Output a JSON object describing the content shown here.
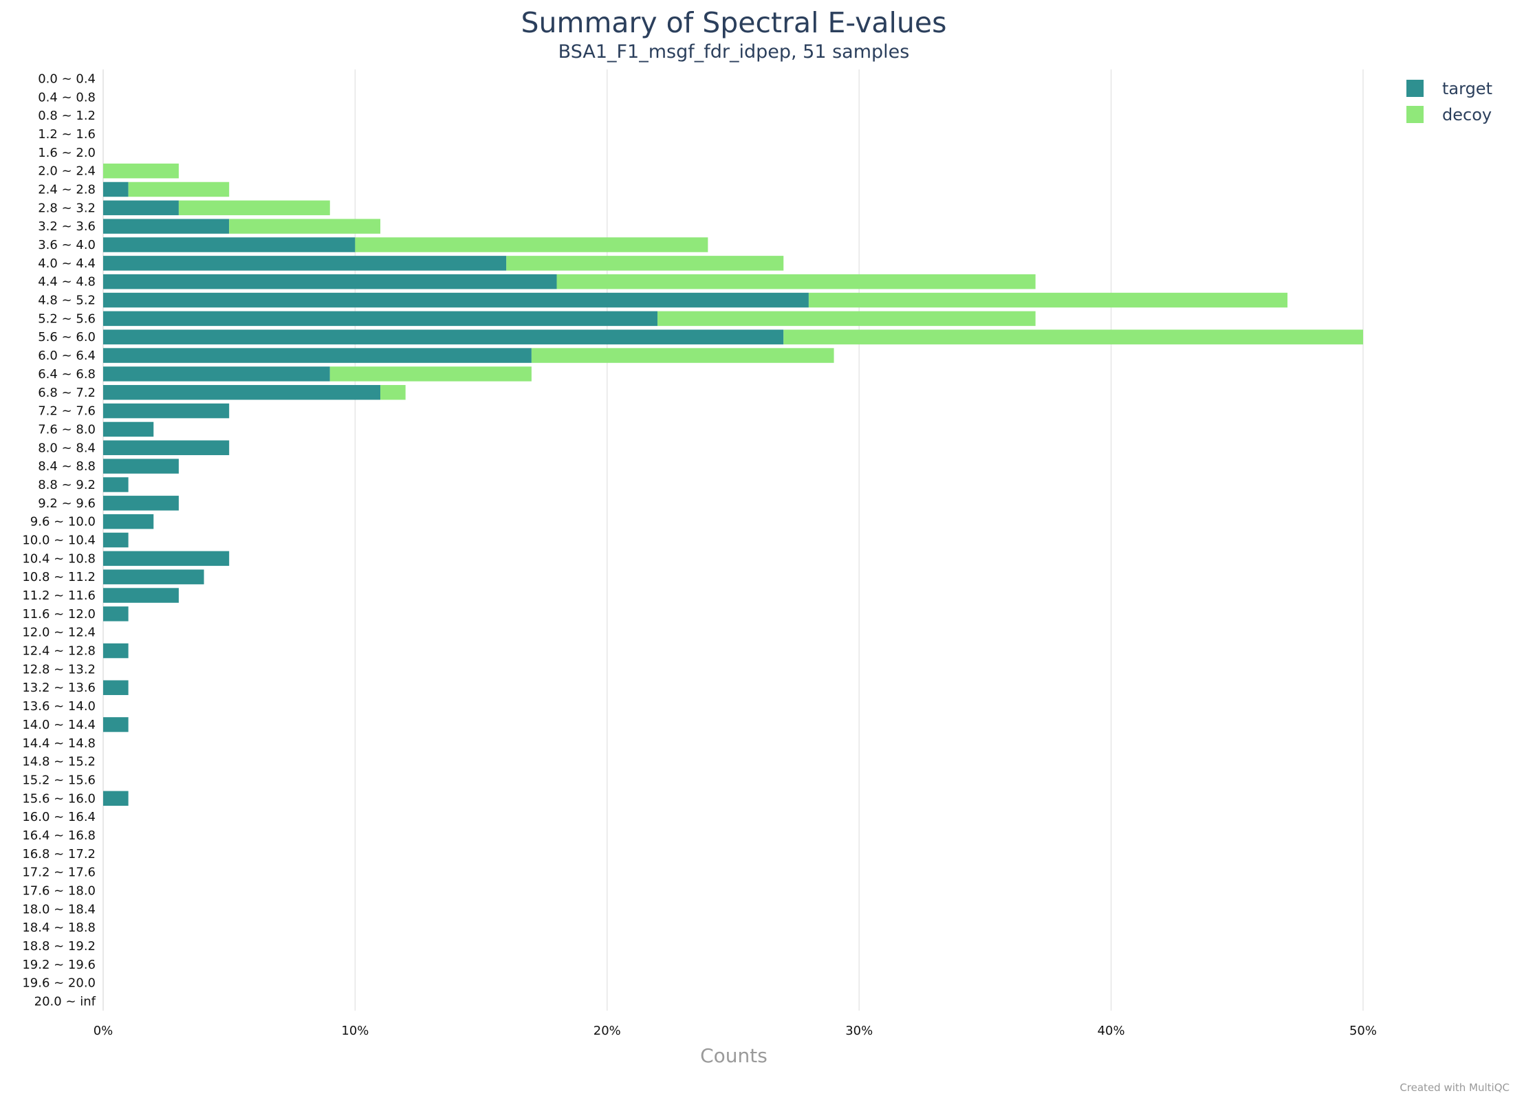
{
  "chart_data": {
    "type": "bar",
    "orientation": "horizontal",
    "stacked": true,
    "title": "Summary of Spectral E-values",
    "subtitle": "BSA1_F1_msgf_fdr_idpep, 51 samples",
    "xlabel": "Counts",
    "ylabel": "",
    "xlim": [
      0,
      0.5
    ],
    "x_ticks": [
      "0%",
      "10%",
      "20%",
      "30%",
      "40%",
      "50%"
    ],
    "x_tick_values": [
      0,
      0.1,
      0.2,
      0.3,
      0.4,
      0.5
    ],
    "grid": true,
    "legend_position": "top-right",
    "categories": [
      "0.0 ~ 0.4",
      "0.4 ~ 0.8",
      "0.8 ~ 1.2",
      "1.2 ~ 1.6",
      "1.6 ~ 2.0",
      "2.0 ~ 2.4",
      "2.4 ~ 2.8",
      "2.8 ~ 3.2",
      "3.2 ~ 3.6",
      "3.6 ~ 4.0",
      "4.0 ~ 4.4",
      "4.4 ~ 4.8",
      "4.8 ~ 5.2",
      "5.2 ~ 5.6",
      "5.6 ~ 6.0",
      "6.0 ~ 6.4",
      "6.4 ~ 6.8",
      "6.8 ~ 7.2",
      "7.2 ~ 7.6",
      "7.6 ~ 8.0",
      "8.0 ~ 8.4",
      "8.4 ~ 8.8",
      "8.8 ~ 9.2",
      "9.2 ~ 9.6",
      "9.6 ~ 10.0",
      "10.0 ~ 10.4",
      "10.4 ~ 10.8",
      "10.8 ~ 11.2",
      "11.2 ~ 11.6",
      "11.6 ~ 12.0",
      "12.0 ~ 12.4",
      "12.4 ~ 12.8",
      "12.8 ~ 13.2",
      "13.2 ~ 13.6",
      "13.6 ~ 14.0",
      "14.0 ~ 14.4",
      "14.4 ~ 14.8",
      "14.8 ~ 15.2",
      "15.2 ~ 15.6",
      "15.6 ~ 16.0",
      "16.0 ~ 16.4",
      "16.4 ~ 16.8",
      "16.8 ~ 17.2",
      "17.2 ~ 17.6",
      "17.6 ~ 18.0",
      "18.0 ~ 18.4",
      "18.4 ~ 18.8",
      "18.8 ~ 19.2",
      "19.2 ~ 19.6",
      "19.6 ~ 20.0",
      "20.0 ~ inf"
    ],
    "series": [
      {
        "name": "target",
        "color": "#2e9090",
        "values": [
          0,
          0,
          0,
          0,
          0,
          0,
          0.01,
          0.03,
          0.05,
          0.1,
          0.16,
          0.18,
          0.28,
          0.22,
          0.27,
          0.17,
          0.09,
          0.11,
          0.05,
          0.02,
          0.05,
          0.03,
          0.01,
          0.03,
          0.02,
          0.01,
          0.05,
          0.04,
          0.03,
          0.01,
          0,
          0.01,
          0,
          0.01,
          0,
          0.01,
          0,
          0,
          0,
          0.01,
          0,
          0,
          0,
          0,
          0,
          0,
          0,
          0,
          0,
          0,
          0
        ]
      },
      {
        "name": "decoy",
        "color": "#90e87a",
        "values": [
          0,
          0,
          0,
          0,
          0,
          0.03,
          0.04,
          0.06,
          0.06,
          0.14,
          0.11,
          0.19,
          0.19,
          0.15,
          0.23,
          0.12,
          0.08,
          0.01,
          0,
          0,
          0,
          0,
          0,
          0,
          0,
          0,
          0,
          0,
          0,
          0,
          0,
          0,
          0,
          0,
          0,
          0,
          0,
          0,
          0,
          0,
          0,
          0,
          0,
          0,
          0,
          0,
          0,
          0,
          0,
          0,
          0
        ]
      }
    ]
  },
  "credit": "Created with MultiQC"
}
